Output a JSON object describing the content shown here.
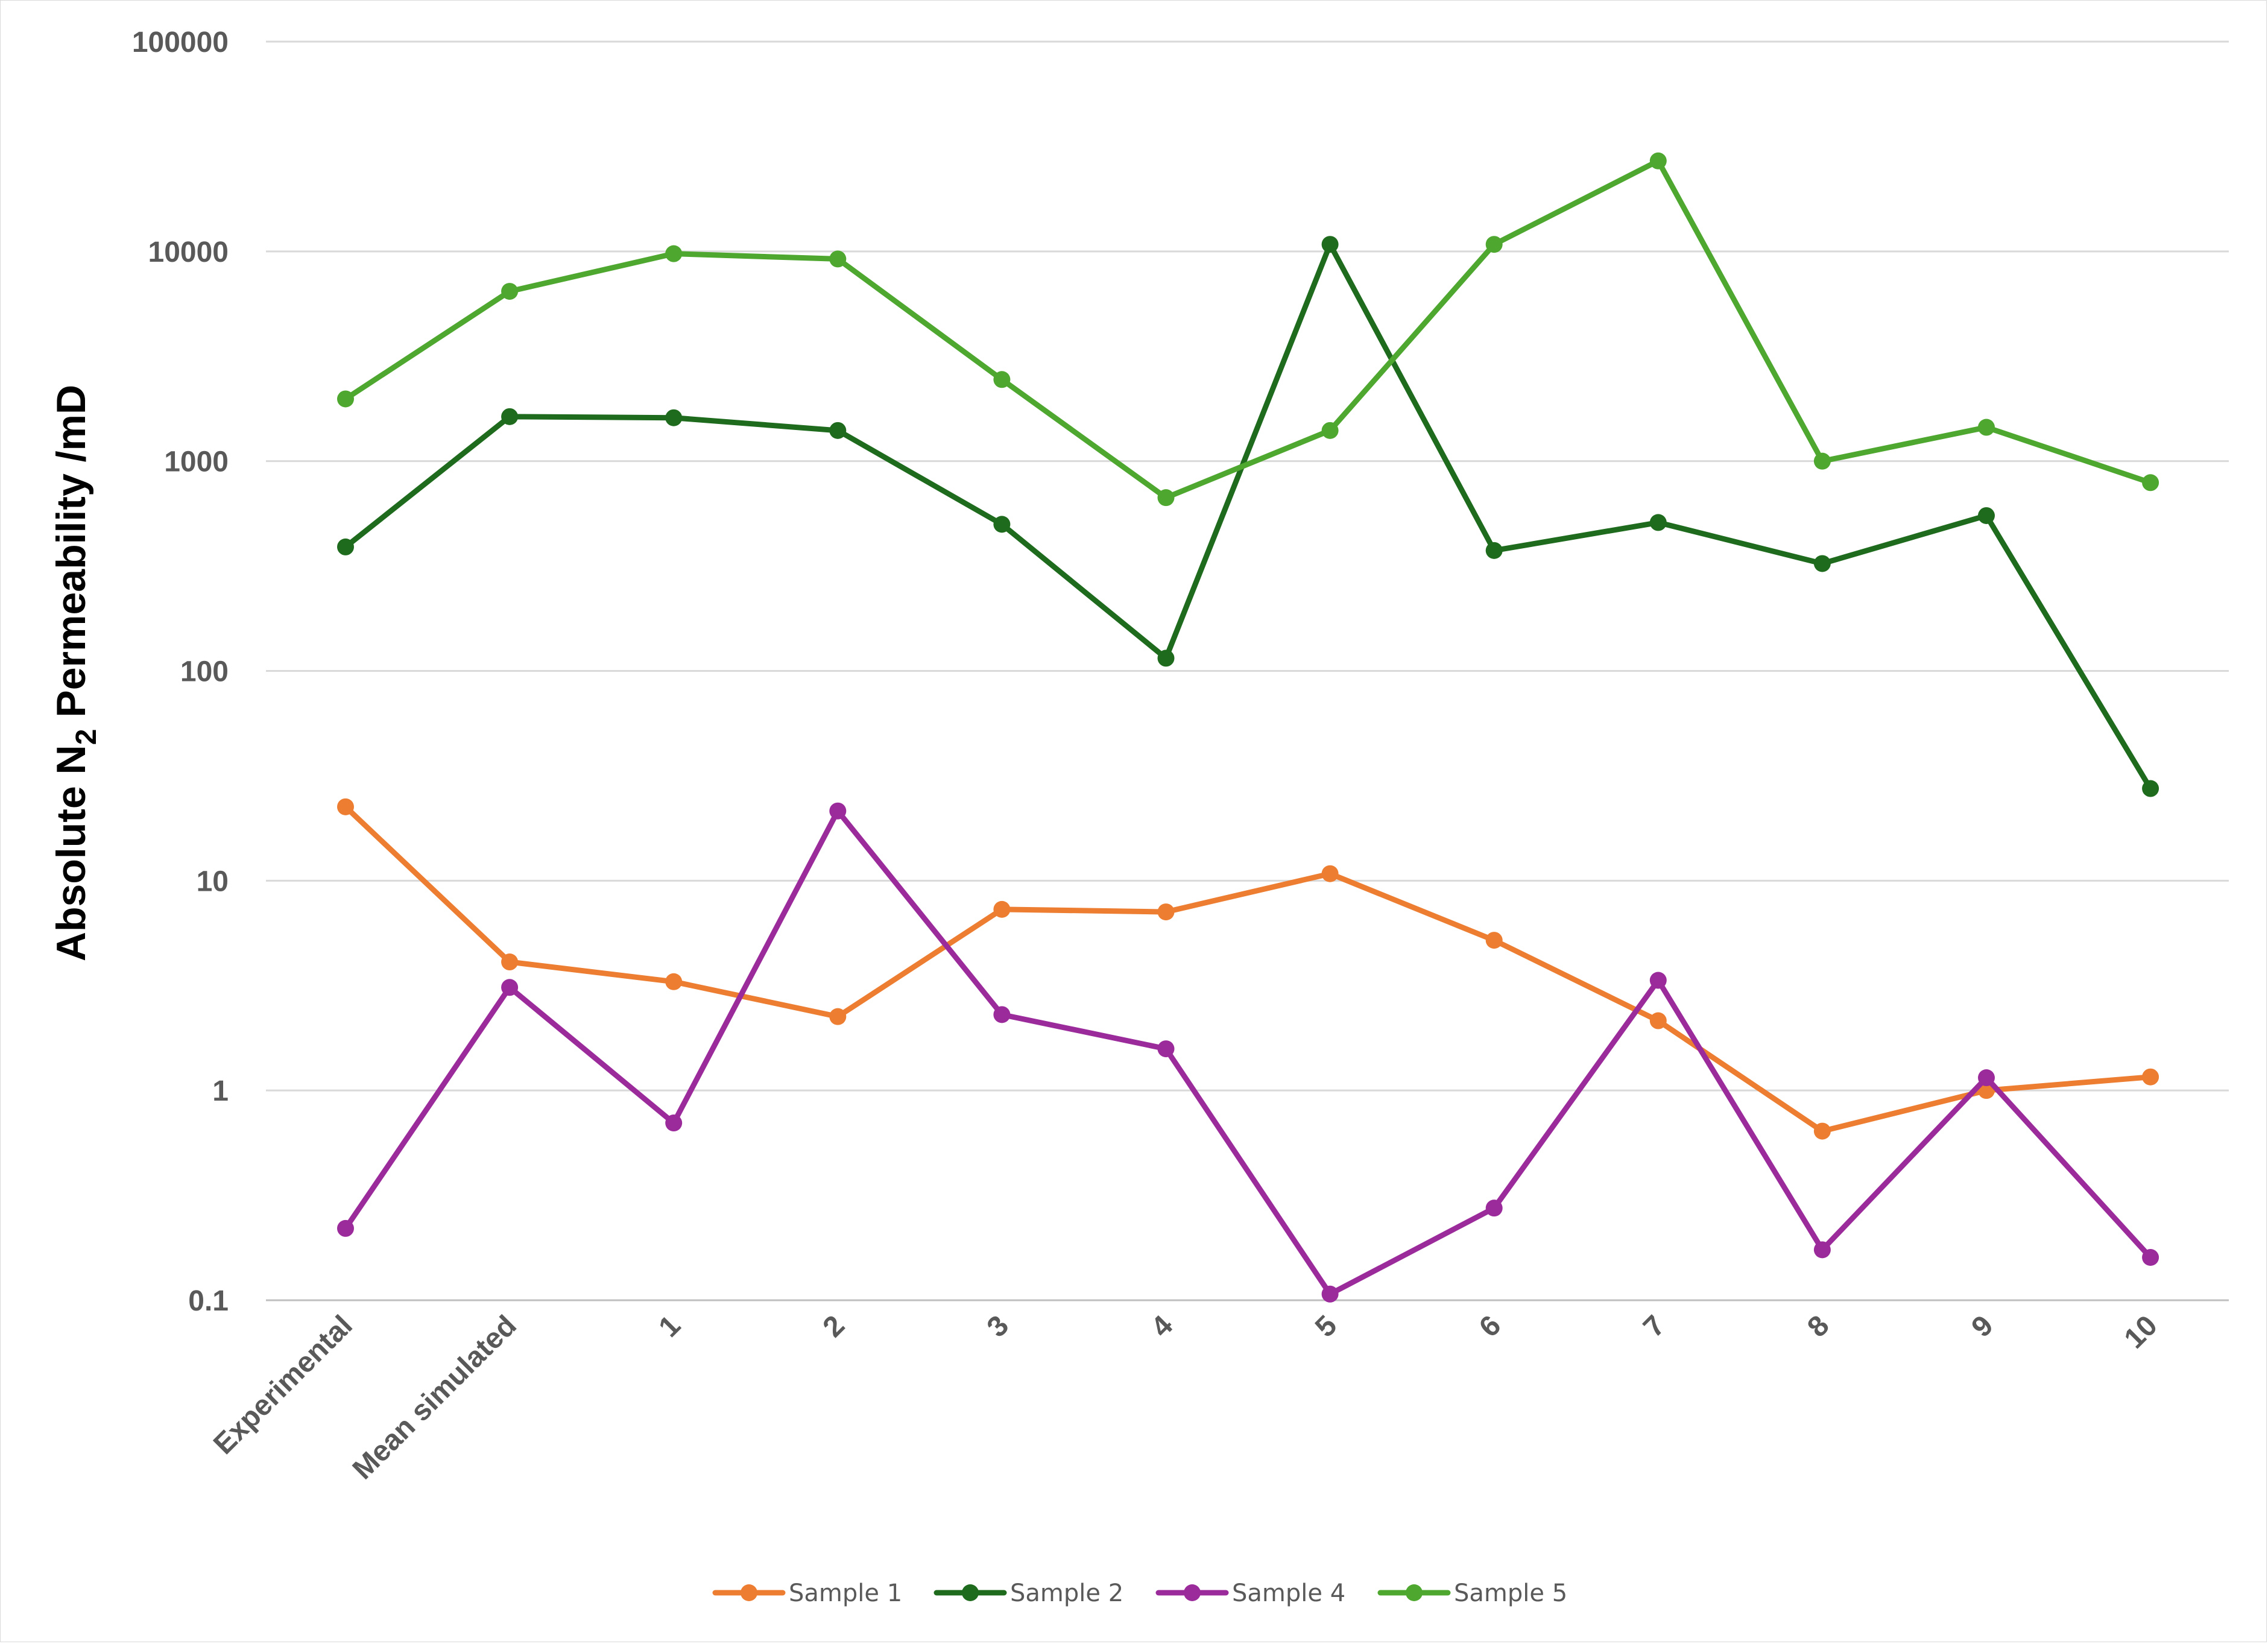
{
  "chart_data": {
    "type": "line",
    "y_scale": "log",
    "ylim": [
      0.1,
      100000
    ],
    "grid": true,
    "legend_position": "bottom",
    "ylabel": {
      "prefix": "Absolute  N",
      "subscript": "2",
      "suffix": "  Permeability /mD"
    },
    "xlabel": "",
    "y_ticks": [
      "100000",
      "10000",
      "1000",
      "100",
      "10",
      "1",
      "0.1"
    ],
    "y_tick_values": [
      100000,
      10000,
      1000,
      100,
      10,
      1,
      0.1
    ],
    "categories": [
      "Experimental",
      "Mean simulated",
      "1",
      "2",
      "3",
      "4",
      "5",
      "6",
      "7",
      "8",
      "9",
      "10"
    ],
    "series": [
      {
        "name": "Sample 1",
        "color": "#ED7D31",
        "values": [
          22.5,
          4.1,
          3.3,
          2.25,
          7.3,
          7.1,
          10.8,
          5.2,
          2.15,
          0.64,
          1.0,
          1.16
        ]
      },
      {
        "name": "Sample 2",
        "color": "#1E6B1E",
        "values": [
          390,
          1630,
          1610,
          1400,
          500,
          115,
          10800,
          375,
          510,
          325,
          550,
          27.5
        ]
      },
      {
        "name": "Sample 4",
        "color": "#9B2A9B",
        "values": [
          0.22,
          3.1,
          0.7,
          21.5,
          2.3,
          1.58,
          0.107,
          0.275,
          3.35,
          0.174,
          1.15,
          0.16
        ]
      },
      {
        "name": "Sample 5",
        "color": "#4EA72E",
        "values": [
          1980,
          6450,
          9750,
          9200,
          2450,
          670,
          1400,
          10800,
          27000,
          1000,
          1450,
          790
        ]
      }
    ]
  }
}
